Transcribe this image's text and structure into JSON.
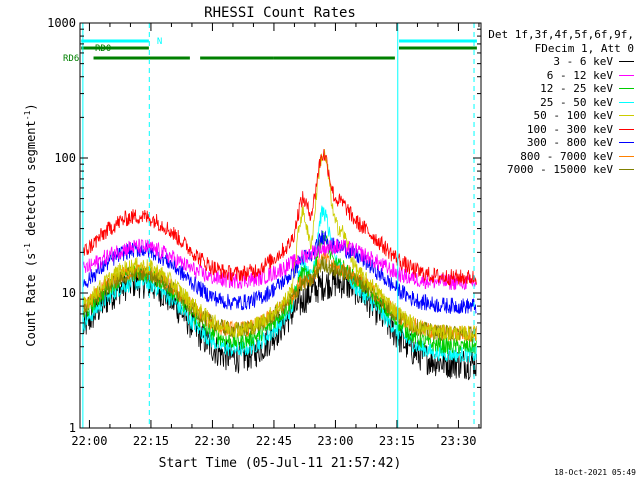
{
  "chart_data": {
    "type": "line",
    "title": "RHESSI Count Rates",
    "xlabel": "Start Time (05-Jul-11 21:57:42)",
    "ylabel_parts": [
      "Count Rate (s",
      "-1",
      " detector segment",
      "-1",
      ")"
    ],
    "x_ticks": [
      "22:00",
      "22:15",
      "22:30",
      "22:45",
      "23:00",
      "23:15",
      "23:30"
    ],
    "x_tick_minutes": [
      0,
      15,
      30,
      45,
      60,
      75,
      90
    ],
    "x_range_minutes": [
      -2.3,
      95.5
    ],
    "y_scale": "log",
    "y_range": [
      1,
      1000
    ],
    "y_ticks": [
      "1",
      "10",
      "100",
      "1000"
    ],
    "grid": false,
    "legend_position": "right",
    "legend_header": [
      "Det 1f,3f,4f,5f,6f,9f,",
      "FDecim 1, Att 0"
    ],
    "series": [
      {
        "name": "3 - 6 keV",
        "color": "#000000",
        "base": 3.0,
        "day": 12.0,
        "flare": 0
      },
      {
        "name": "6 - 12 keV",
        "color": "#ff00ff",
        "base": 12.0,
        "day": 22.0,
        "flare": 0
      },
      {
        "name": "12 - 25 keV",
        "color": "#00cc00",
        "base": 4.0,
        "day": 14.0,
        "flare": 12
      },
      {
        "name": "25 - 50 keV",
        "color": "#00ffff",
        "base": 3.5,
        "day": 12.0,
        "flare": 28
      },
      {
        "name": "50 - 100 keV",
        "color": "#cccc00",
        "base": 5.0,
        "day": 16.0,
        "flare": 90
      },
      {
        "name": "100 - 300 keV",
        "color": "#ff0000",
        "base": 13.0,
        "day": 37.0,
        "flare": 70
      },
      {
        "name": "300 - 800 keV",
        "color": "#0000ff",
        "base": 8.0,
        "day": 21.0,
        "flare": 6
      },
      {
        "name": "800 - 7000 keV",
        "color": "#ff8000",
        "base": 5.0,
        "day": 14.5,
        "flare": 4
      },
      {
        "name": "7000 - 15000 keV",
        "color": "#808000",
        "base": 5.0,
        "day": 14.0,
        "flare": 3
      }
    ],
    "flags": [
      {
        "label": "N",
        "color": "#00ffff",
        "segments": [
          [
            -2.0,
            14.5
          ],
          [
            75.5,
            94.5
          ]
        ]
      },
      {
        "label": "RD0",
        "color": "#008000",
        "segments": [
          [
            -2.0,
            14.5
          ],
          [
            75.5,
            94.5
          ]
        ]
      },
      {
        "label": "RD6",
        "color": "#008000",
        "segments": [
          [
            1.0,
            24.5
          ],
          [
            27.0,
            45.0
          ],
          [
            45.0,
            74.5
          ]
        ]
      }
    ],
    "solid_vlines_minutes": [
      -1.6,
      75.2
    ],
    "dashed_vlines_minutes": [
      14.6,
      93.8
    ]
  },
  "footer": "18-Oct-2021 05:49"
}
